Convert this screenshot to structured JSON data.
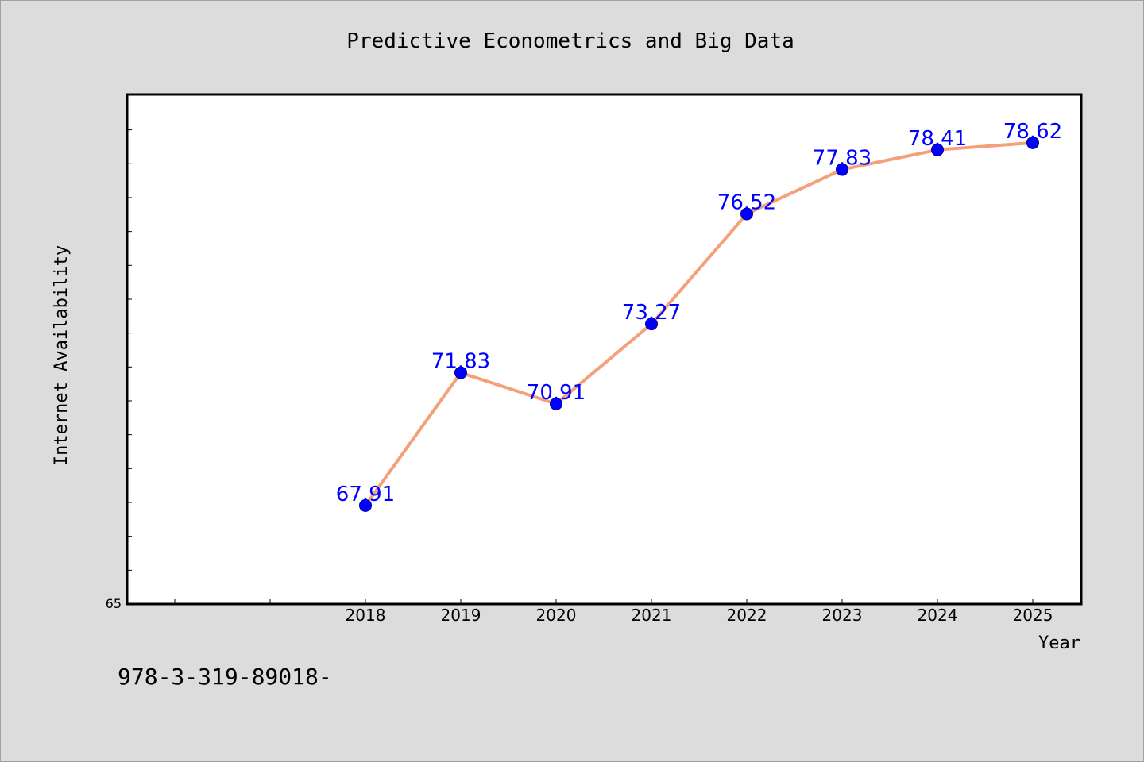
{
  "chart_data": {
    "type": "line",
    "title": "Predictive Econometrics and Big Data",
    "xlabel": "Year",
    "ylabel": "Internet Availability",
    "categories": [
      "2018",
      "2019",
      "2020",
      "2021",
      "2022",
      "2023",
      "2024",
      "2025"
    ],
    "series": [
      {
        "values": [
          67.91,
          71.83,
          70.91,
          73.27,
          76.52,
          77.83,
          78.41,
          78.62
        ]
      }
    ],
    "data_labels": [
      "67.91",
      "71.83",
      "70.91",
      "73.27",
      "76.52",
      "77.83",
      "78.41",
      "78.62"
    ],
    "ytick_labels": [
      "65"
    ],
    "ylim": [
      65,
      80
    ],
    "ytick_step": 1,
    "grid": false,
    "line_color": "#f4a07a",
    "marker_color": "#0000ff",
    "label_color": "#0000ff"
  },
  "footer": {
    "text": "978-3-319-89018-"
  }
}
